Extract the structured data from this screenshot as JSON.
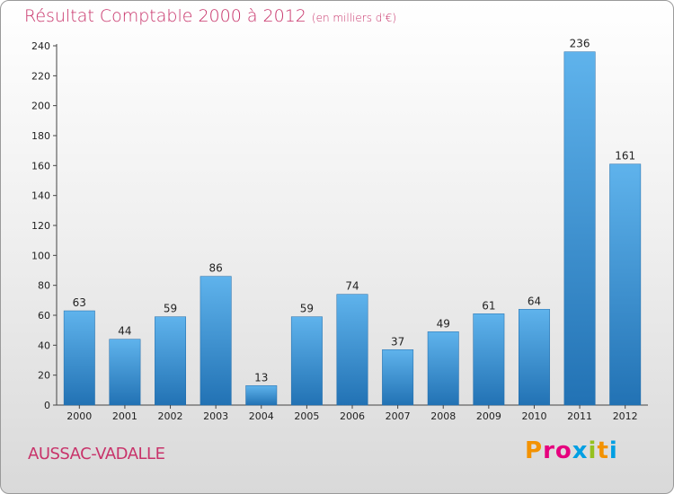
{
  "title": "Résultat Comptable 2000 à 2012",
  "subtitle": "(en milliers d'€)",
  "commune": "AUSSAC-VADALLE",
  "logo": {
    "text": "Proxiti",
    "colors": [
      "#f39200",
      "#e6007e",
      "#e6007e",
      "#009fe3",
      "#95c11f",
      "#f39200",
      "#009fe3"
    ]
  },
  "colors": {
    "title": "#c8336a",
    "bar_top": "#5fb3ec",
    "bar_bottom": "#2272b4"
  },
  "chart_data": {
    "type": "bar",
    "categories": [
      "2000",
      "2001",
      "2002",
      "2003",
      "2004",
      "2005",
      "2006",
      "2007",
      "2008",
      "2009",
      "2010",
      "2011",
      "2012"
    ],
    "values": [
      63,
      44,
      59,
      86,
      13,
      59,
      74,
      37,
      49,
      61,
      64,
      236,
      161
    ],
    "title": "Résultat Comptable 2000 à 2012",
    "xlabel": "",
    "ylabel": "",
    "ylim": [
      0,
      240
    ],
    "yticks": [
      0,
      20,
      40,
      60,
      80,
      100,
      120,
      140,
      160,
      180,
      200,
      220,
      240
    ],
    "grid": false,
    "data_labels": true
  }
}
